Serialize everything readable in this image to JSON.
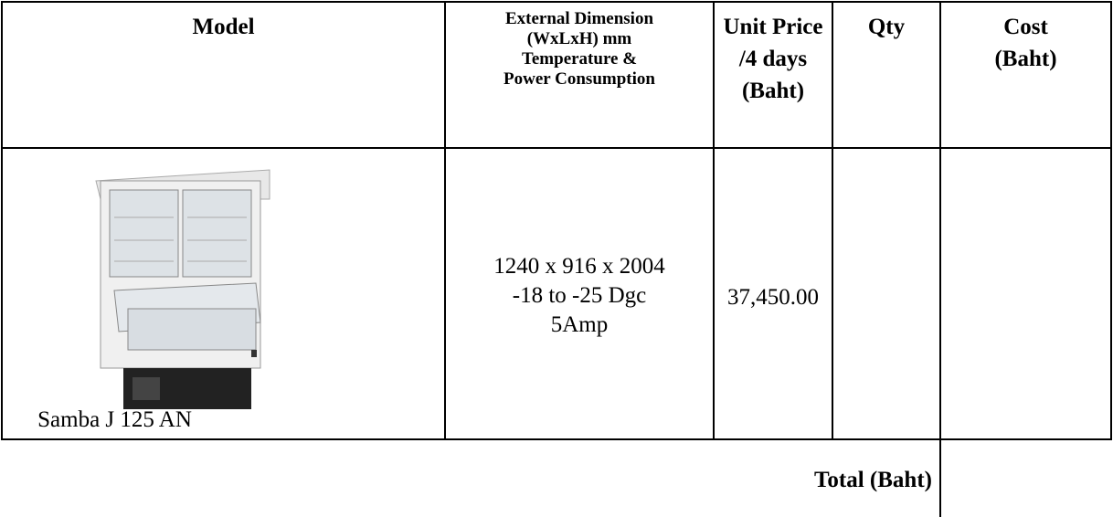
{
  "table": {
    "header": {
      "model": "Model",
      "dimension": [
        "External Dimension",
        "(WxLxH) mm",
        "Temperature &",
        "Power Consumption"
      ],
      "unit_price": [
        "Unit Price",
        "/4 days",
        "(Baht)"
      ],
      "qty": "Qty",
      "cost": [
        "Cost",
        "(Baht)"
      ]
    },
    "rows": [
      {
        "model": "Samba J 125 AN",
        "dimension": [
          "1240 x 916 x 2004",
          "-18 to -25 Dgc",
          "5Amp"
        ],
        "unit_price": "37,450.00"
      }
    ],
    "total_label": "Total (Baht)"
  }
}
